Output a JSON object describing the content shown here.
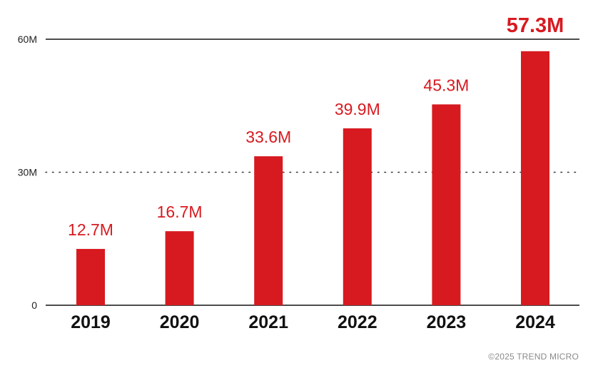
{
  "chart_data": {
    "type": "bar",
    "title": "",
    "xlabel": "",
    "ylabel": "",
    "categories": [
      "2019",
      "2020",
      "2021",
      "2022",
      "2023",
      "2024"
    ],
    "values": [
      12.7,
      16.7,
      33.6,
      39.9,
      45.3,
      57.3
    ],
    "value_labels": [
      "12.7M",
      "16.7M",
      "33.6M",
      "39.9M",
      "45.3M",
      "57.3M"
    ],
    "ylim": [
      0,
      60
    ],
    "yticks": [
      0,
      30,
      60
    ],
    "ytick_labels": [
      "0",
      "30M",
      "60M"
    ],
    "grid": true,
    "bar_color": "#d71a20",
    "highlight_index": 5
  },
  "footer": {
    "copyright": "©2025 TREND MICRO"
  }
}
